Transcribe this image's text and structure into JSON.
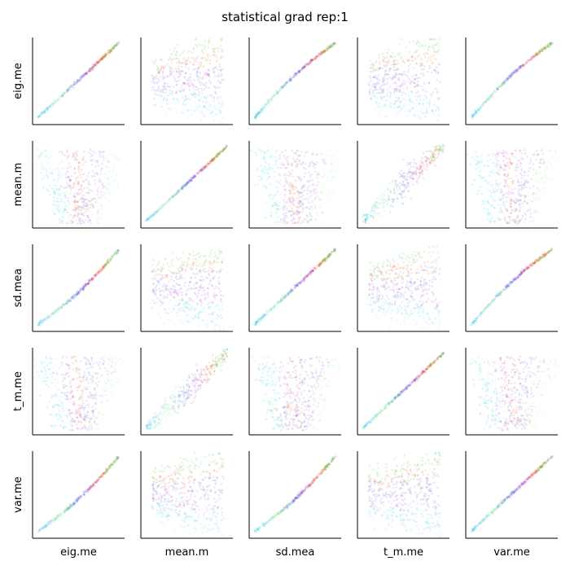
{
  "chart_data": {
    "type": "scatter",
    "title": "statistical grad rep:1",
    "variables": [
      "eig.me",
      "mean.m",
      "sd.mea",
      "t_m.me",
      "var.me"
    ],
    "layout": "5x5 pairwise scatter matrix",
    "axes": {
      "ticks_shown": false,
      "spines": [
        "left",
        "bottom"
      ],
      "grid": false
    },
    "legend": "none",
    "series_colors": [
      "#00ced1",
      "#87cefa",
      "#98fb98",
      "#4169e1",
      "#9932cc",
      "#ff4500",
      "#32cd32",
      "#ba55d3"
    ],
    "relationships": {
      "linear_group": [
        "eig.me",
        "sd.mea",
        "var.me"
      ],
      "linear_pair": [
        "mean.m",
        "t_m.me"
      ],
      "cross_group_shape": "fan"
    }
  }
}
